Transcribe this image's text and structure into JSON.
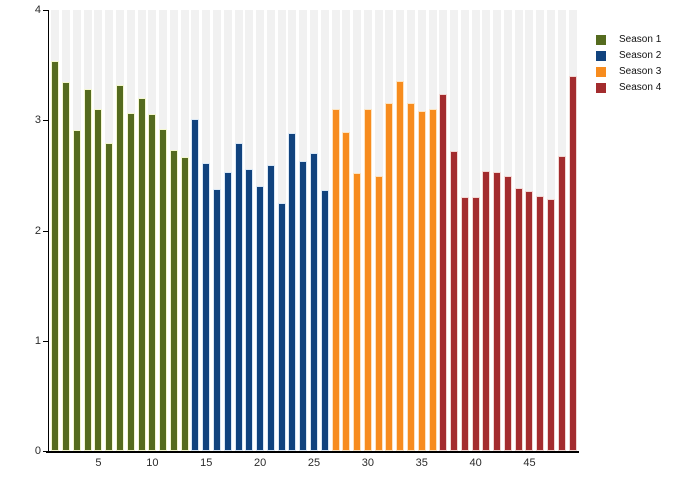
{
  "chart_data": {
    "type": "bar",
    "xlabel": "",
    "ylabel": "",
    "x_axis": {
      "ticks": [
        5,
        10,
        15,
        20,
        25,
        30,
        35,
        40,
        45
      ],
      "range": [
        0.5,
        49.5
      ]
    },
    "y_axis": {
      "ticks": [
        0,
        1,
        2,
        3,
        4
      ],
      "range": [
        0,
        4
      ]
    },
    "grid": "off",
    "background_column_color": "#f1f1f1",
    "axis_color": "#000000",
    "legend_position": "top-right",
    "series": [
      {
        "name": "Season 1",
        "color": "#556B1F",
        "edge_tint": "#F3F6CF",
        "start_episode": 1,
        "values": [
          3.54,
          3.35,
          2.91,
          3.28,
          3.1,
          2.79,
          3.32,
          3.07,
          3.2,
          3.06,
          2.92,
          2.73,
          2.67
        ]
      },
      {
        "name": "Season 2",
        "color": "#11437E",
        "edge_tint": "#D9E7F5",
        "start_episode": 14,
        "values": [
          3.01,
          2.61,
          2.38,
          2.53,
          2.79,
          2.56,
          2.4,
          2.59,
          2.25,
          2.88,
          2.63,
          2.7,
          2.37
        ]
      },
      {
        "name": "Season 3",
        "color": "#F78C1E",
        "edge_tint": "#FCE3C0",
        "start_episode": 27,
        "values": [
          3.1,
          2.89,
          2.52,
          3.1,
          2.49,
          3.16,
          3.36,
          3.16,
          3.08,
          3.1
        ]
      },
      {
        "name": "Season 4",
        "color": "#A32C2E",
        "edge_tint": "#F1D7D3",
        "start_episode": 37,
        "values": [
          3.24,
          2.72,
          2.3,
          2.3,
          2.54,
          2.53,
          2.49,
          2.39,
          2.36,
          2.31,
          2.29,
          2.68,
          3.4
        ]
      }
    ]
  }
}
